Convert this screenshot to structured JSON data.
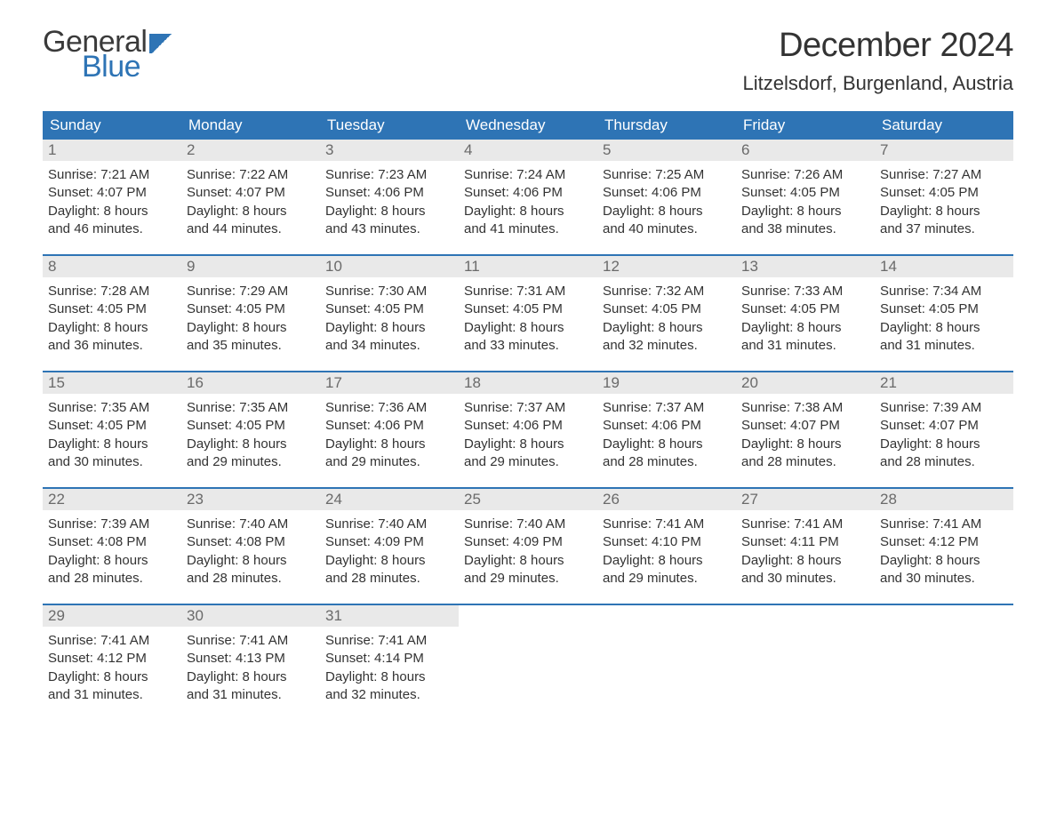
{
  "logo": {
    "text1": "General",
    "text2": "Blue"
  },
  "title": "December 2024",
  "location": "Litzelsdorf, Burgenland, Austria",
  "colors": {
    "brand_blue": "#2e74b5",
    "header_text": "#ffffff",
    "daynum_bg": "#e9e9e9",
    "daynum_text": "#6a6a6a",
    "body_text": "#333333",
    "page_bg": "#ffffff"
  },
  "typography": {
    "title_fontsize": 38,
    "location_fontsize": 22,
    "dow_fontsize": 17,
    "daynum_fontsize": 17,
    "body_fontsize": 15,
    "font_family": "Arial"
  },
  "layout": {
    "columns": 7,
    "rows": 5,
    "week_top_border_color": "#2e74b5",
    "week_top_border_width": 2
  },
  "days_of_week": [
    "Sunday",
    "Monday",
    "Tuesday",
    "Wednesday",
    "Thursday",
    "Friday",
    "Saturday"
  ],
  "labels": {
    "sunrise_prefix": "Sunrise: ",
    "sunset_prefix": "Sunset: ",
    "daylight_prefix": "Daylight: ",
    "and_minutes_suffix": " minutes."
  },
  "weeks": [
    [
      {
        "n": "1",
        "sunrise": "7:21 AM",
        "sunset": "4:07 PM",
        "dl_h": "8 hours",
        "dl_m": "46"
      },
      {
        "n": "2",
        "sunrise": "7:22 AM",
        "sunset": "4:07 PM",
        "dl_h": "8 hours",
        "dl_m": "44"
      },
      {
        "n": "3",
        "sunrise": "7:23 AM",
        "sunset": "4:06 PM",
        "dl_h": "8 hours",
        "dl_m": "43"
      },
      {
        "n": "4",
        "sunrise": "7:24 AM",
        "sunset": "4:06 PM",
        "dl_h": "8 hours",
        "dl_m": "41"
      },
      {
        "n": "5",
        "sunrise": "7:25 AM",
        "sunset": "4:06 PM",
        "dl_h": "8 hours",
        "dl_m": "40"
      },
      {
        "n": "6",
        "sunrise": "7:26 AM",
        "sunset": "4:05 PM",
        "dl_h": "8 hours",
        "dl_m": "38"
      },
      {
        "n": "7",
        "sunrise": "7:27 AM",
        "sunset": "4:05 PM",
        "dl_h": "8 hours",
        "dl_m": "37"
      }
    ],
    [
      {
        "n": "8",
        "sunrise": "7:28 AM",
        "sunset": "4:05 PM",
        "dl_h": "8 hours",
        "dl_m": "36"
      },
      {
        "n": "9",
        "sunrise": "7:29 AM",
        "sunset": "4:05 PM",
        "dl_h": "8 hours",
        "dl_m": "35"
      },
      {
        "n": "10",
        "sunrise": "7:30 AM",
        "sunset": "4:05 PM",
        "dl_h": "8 hours",
        "dl_m": "34"
      },
      {
        "n": "11",
        "sunrise": "7:31 AM",
        "sunset": "4:05 PM",
        "dl_h": "8 hours",
        "dl_m": "33"
      },
      {
        "n": "12",
        "sunrise": "7:32 AM",
        "sunset": "4:05 PM",
        "dl_h": "8 hours",
        "dl_m": "32"
      },
      {
        "n": "13",
        "sunrise": "7:33 AM",
        "sunset": "4:05 PM",
        "dl_h": "8 hours",
        "dl_m": "31"
      },
      {
        "n": "14",
        "sunrise": "7:34 AM",
        "sunset": "4:05 PM",
        "dl_h": "8 hours",
        "dl_m": "31"
      }
    ],
    [
      {
        "n": "15",
        "sunrise": "7:35 AM",
        "sunset": "4:05 PM",
        "dl_h": "8 hours",
        "dl_m": "30"
      },
      {
        "n": "16",
        "sunrise": "7:35 AM",
        "sunset": "4:05 PM",
        "dl_h": "8 hours",
        "dl_m": "29"
      },
      {
        "n": "17",
        "sunrise": "7:36 AM",
        "sunset": "4:06 PM",
        "dl_h": "8 hours",
        "dl_m": "29"
      },
      {
        "n": "18",
        "sunrise": "7:37 AM",
        "sunset": "4:06 PM",
        "dl_h": "8 hours",
        "dl_m": "29"
      },
      {
        "n": "19",
        "sunrise": "7:37 AM",
        "sunset": "4:06 PM",
        "dl_h": "8 hours",
        "dl_m": "28"
      },
      {
        "n": "20",
        "sunrise": "7:38 AM",
        "sunset": "4:07 PM",
        "dl_h": "8 hours",
        "dl_m": "28"
      },
      {
        "n": "21",
        "sunrise": "7:39 AM",
        "sunset": "4:07 PM",
        "dl_h": "8 hours",
        "dl_m": "28"
      }
    ],
    [
      {
        "n": "22",
        "sunrise": "7:39 AM",
        "sunset": "4:08 PM",
        "dl_h": "8 hours",
        "dl_m": "28"
      },
      {
        "n": "23",
        "sunrise": "7:40 AM",
        "sunset": "4:08 PM",
        "dl_h": "8 hours",
        "dl_m": "28"
      },
      {
        "n": "24",
        "sunrise": "7:40 AM",
        "sunset": "4:09 PM",
        "dl_h": "8 hours",
        "dl_m": "28"
      },
      {
        "n": "25",
        "sunrise": "7:40 AM",
        "sunset": "4:09 PM",
        "dl_h": "8 hours",
        "dl_m": "29"
      },
      {
        "n": "26",
        "sunrise": "7:41 AM",
        "sunset": "4:10 PM",
        "dl_h": "8 hours",
        "dl_m": "29"
      },
      {
        "n": "27",
        "sunrise": "7:41 AM",
        "sunset": "4:11 PM",
        "dl_h": "8 hours",
        "dl_m": "30"
      },
      {
        "n": "28",
        "sunrise": "7:41 AM",
        "sunset": "4:12 PM",
        "dl_h": "8 hours",
        "dl_m": "30"
      }
    ],
    [
      {
        "n": "29",
        "sunrise": "7:41 AM",
        "sunset": "4:12 PM",
        "dl_h": "8 hours",
        "dl_m": "31"
      },
      {
        "n": "30",
        "sunrise": "7:41 AM",
        "sunset": "4:13 PM",
        "dl_h": "8 hours",
        "dl_m": "31"
      },
      {
        "n": "31",
        "sunrise": "7:41 AM",
        "sunset": "4:14 PM",
        "dl_h": "8 hours",
        "dl_m": "32"
      },
      {
        "empty": true
      },
      {
        "empty": true
      },
      {
        "empty": true
      },
      {
        "empty": true
      }
    ]
  ]
}
